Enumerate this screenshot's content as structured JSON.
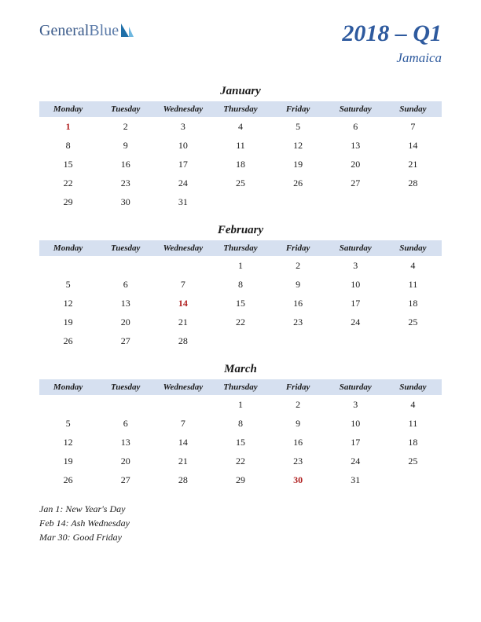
{
  "logo": {
    "part1": "General",
    "part2": "Blue"
  },
  "title": {
    "main": "2018 – Q1",
    "sub": "Jamaica"
  },
  "colors": {
    "title": "#2e5a9e",
    "header_bg": "#d6e0f0",
    "text": "#1a1a1a",
    "holiday": "#b02020",
    "logo1": "#3a5a8a",
    "logo2": "#5a7aa8",
    "sail_dark": "#1f6fa8",
    "sail_light": "#6fb8e0"
  },
  "day_headers": [
    "Monday",
    "Tuesday",
    "Wednesday",
    "Thursday",
    "Friday",
    "Saturday",
    "Sunday"
  ],
  "months": [
    {
      "name": "January",
      "weeks": [
        [
          {
            "d": 1,
            "h": true
          },
          {
            "d": 2
          },
          {
            "d": 3
          },
          {
            "d": 4
          },
          {
            "d": 5
          },
          {
            "d": 6
          },
          {
            "d": 7
          }
        ],
        [
          {
            "d": 8
          },
          {
            "d": 9
          },
          {
            "d": 10
          },
          {
            "d": 11
          },
          {
            "d": 12
          },
          {
            "d": 13
          },
          {
            "d": 14
          }
        ],
        [
          {
            "d": 15
          },
          {
            "d": 16
          },
          {
            "d": 17
          },
          {
            "d": 18
          },
          {
            "d": 19
          },
          {
            "d": 20
          },
          {
            "d": 21
          }
        ],
        [
          {
            "d": 22
          },
          {
            "d": 23
          },
          {
            "d": 24
          },
          {
            "d": 25
          },
          {
            "d": 26
          },
          {
            "d": 27
          },
          {
            "d": 28
          }
        ],
        [
          {
            "d": 29
          },
          {
            "d": 30
          },
          {
            "d": 31
          },
          null,
          null,
          null,
          null
        ]
      ]
    },
    {
      "name": "February",
      "weeks": [
        [
          null,
          null,
          null,
          {
            "d": 1
          },
          {
            "d": 2
          },
          {
            "d": 3
          },
          {
            "d": 4
          }
        ],
        [
          {
            "d": 5
          },
          {
            "d": 6
          },
          {
            "d": 7
          },
          {
            "d": 8
          },
          {
            "d": 9
          },
          {
            "d": 10
          },
          {
            "d": 11
          }
        ],
        [
          {
            "d": 12
          },
          {
            "d": 13
          },
          {
            "d": 14,
            "h": true
          },
          {
            "d": 15
          },
          {
            "d": 16
          },
          {
            "d": 17
          },
          {
            "d": 18
          }
        ],
        [
          {
            "d": 19
          },
          {
            "d": 20
          },
          {
            "d": 21
          },
          {
            "d": 22
          },
          {
            "d": 23
          },
          {
            "d": 24
          },
          {
            "d": 25
          }
        ],
        [
          {
            "d": 26
          },
          {
            "d": 27
          },
          {
            "d": 28
          },
          null,
          null,
          null,
          null
        ]
      ]
    },
    {
      "name": "March",
      "weeks": [
        [
          null,
          null,
          null,
          {
            "d": 1
          },
          {
            "d": 2
          },
          {
            "d": 3
          },
          {
            "d": 4
          }
        ],
        [
          {
            "d": 5
          },
          {
            "d": 6
          },
          {
            "d": 7
          },
          {
            "d": 8
          },
          {
            "d": 9
          },
          {
            "d": 10
          },
          {
            "d": 11
          }
        ],
        [
          {
            "d": 12
          },
          {
            "d": 13
          },
          {
            "d": 14
          },
          {
            "d": 15
          },
          {
            "d": 16
          },
          {
            "d": 17
          },
          {
            "d": 18
          }
        ],
        [
          {
            "d": 19
          },
          {
            "d": 20
          },
          {
            "d": 21
          },
          {
            "d": 22
          },
          {
            "d": 23
          },
          {
            "d": 24
          },
          {
            "d": 25
          }
        ],
        [
          {
            "d": 26
          },
          {
            "d": 27
          },
          {
            "d": 28
          },
          {
            "d": 29
          },
          {
            "d": 30,
            "h": true
          },
          {
            "d": 31
          },
          null
        ]
      ]
    }
  ],
  "holidays_list": [
    "Jan 1: New Year's Day",
    "Feb 14: Ash Wednesday",
    "Mar 30: Good Friday"
  ]
}
